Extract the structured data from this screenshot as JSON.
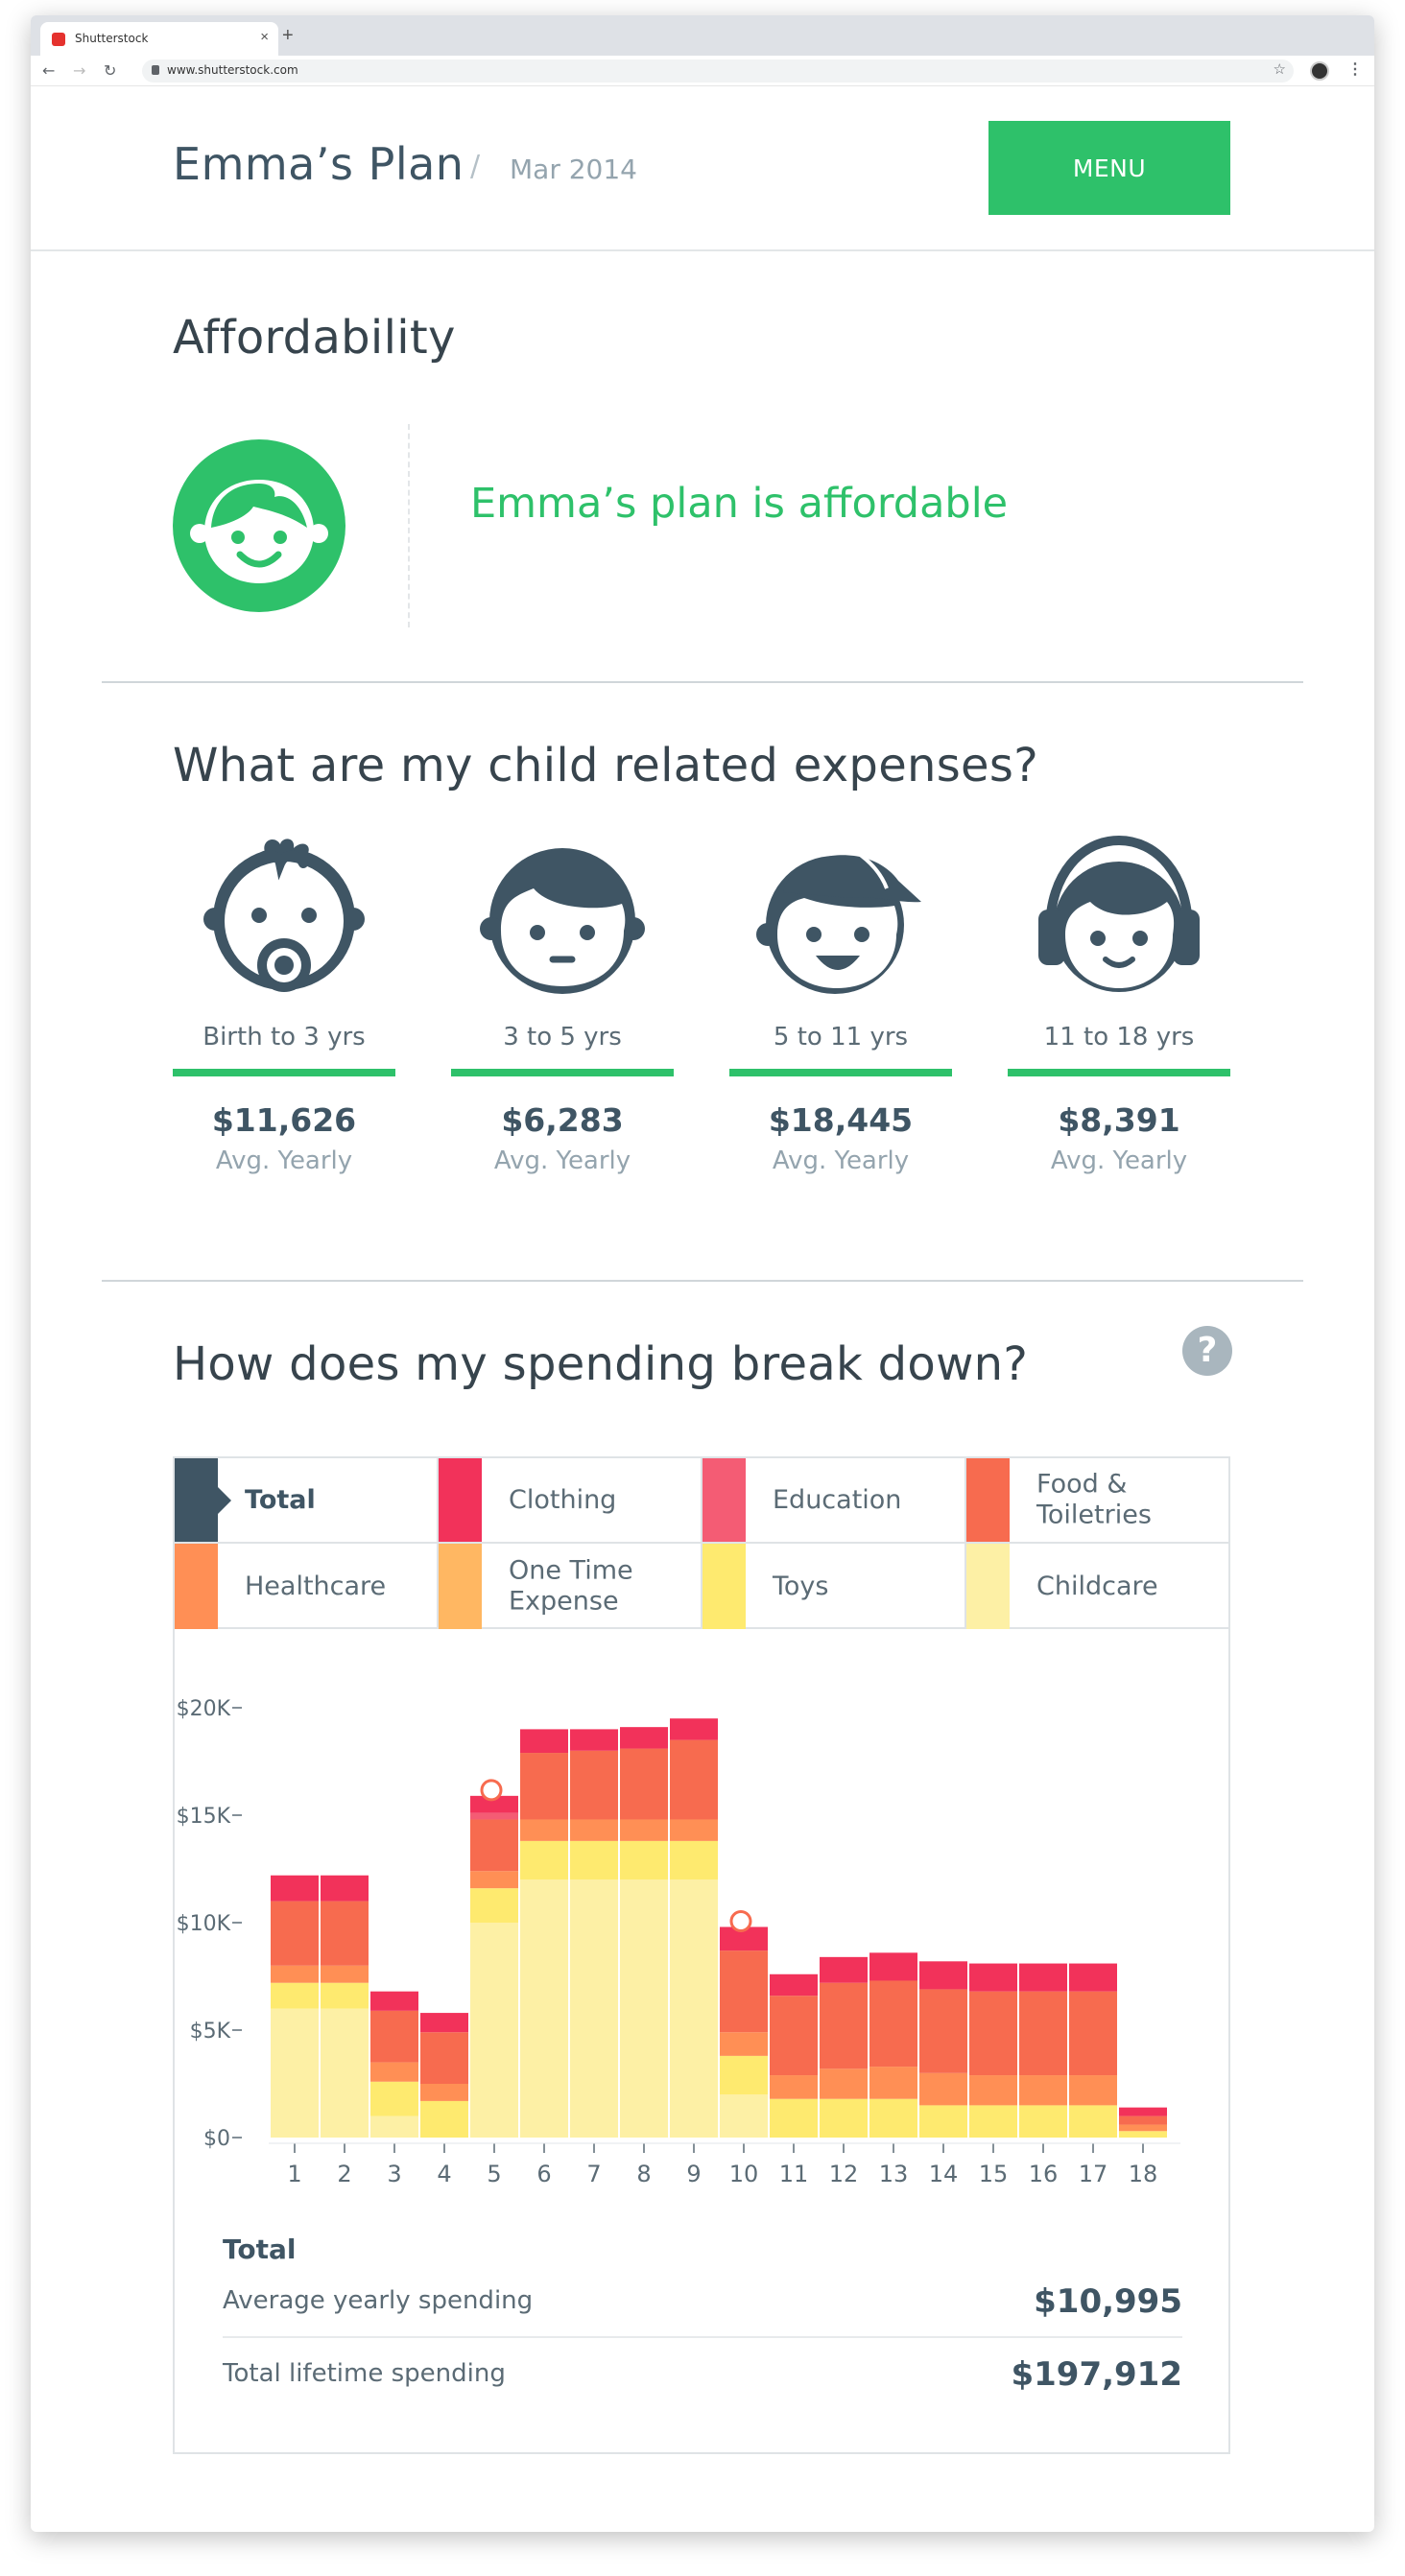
{
  "browser": {
    "tab_title": "Shutterstock",
    "url": "www.shutterstock.com",
    "tab_close": "×",
    "new_tab": "+"
  },
  "header": {
    "title": "Emma’s Plan",
    "separator": "/",
    "date": "Mar 2014",
    "menu_label": "MENU"
  },
  "affordability": {
    "heading": "Affordability",
    "message": "Emma’s plan is affordable",
    "icon": "baby-face-icon"
  },
  "expenses": {
    "heading": "What are my child related expenses?",
    "age_groups": [
      {
        "label": "Birth to 3 yrs",
        "amount": "$11,626",
        "sub": "Avg. Yearly",
        "icon": "baby-pacifier-icon"
      },
      {
        "label": "3 to 5 yrs",
        "amount": "$6,283",
        "sub": "Avg. Yearly",
        "icon": "toddler-face-icon"
      },
      {
        "label": "5 to 11 yrs",
        "amount": "$18,445",
        "sub": "Avg. Yearly",
        "icon": "kid-cap-icon"
      },
      {
        "label": "11 to 18 yrs",
        "amount": "$8,391",
        "sub": "Avg. Yearly",
        "icon": "teen-headphones-icon"
      }
    ]
  },
  "breakdown": {
    "heading": "How does my spending break down?",
    "help_label": "?",
    "legend": [
      {
        "label": "Total",
        "color": "#3f5564",
        "selected": true
      },
      {
        "label": "Clothing",
        "color": "#f2325a"
      },
      {
        "label": "Education",
        "color": "#f45c74"
      },
      {
        "label": "Food & Toiletries",
        "color": "#f76b4f"
      },
      {
        "label": "Healthcare",
        "color": "#ff8f55"
      },
      {
        "label": "One Time Expense",
        "color": "#ffb762"
      },
      {
        "label": "Toys",
        "color": "#feea6f"
      },
      {
        "label": "Childcare",
        "color": "#fdf0a5"
      }
    ]
  },
  "chart_data": {
    "type": "bar",
    "stacked": true,
    "categories": [
      "1",
      "2",
      "3",
      "4",
      "5",
      "6",
      "7",
      "8",
      "9",
      "10",
      "11",
      "12",
      "13",
      "14",
      "15",
      "16",
      "17",
      "18"
    ],
    "ylim": [
      0,
      20000
    ],
    "yticks": [
      "$0",
      "$5K",
      "$10K",
      "$15K",
      "$20K"
    ],
    "ytick_values": [
      0,
      5000,
      10000,
      15000,
      20000
    ],
    "series": [
      {
        "name": "Childcare",
        "color": "#fdf0a5",
        "values": [
          6000,
          6000,
          1000,
          0,
          10000,
          12000,
          12000,
          12000,
          12000,
          2000,
          0,
          0,
          0,
          0,
          0,
          0,
          0,
          0
        ]
      },
      {
        "name": "Toys",
        "color": "#feea6f",
        "values": [
          1200,
          1200,
          1600,
          1700,
          1600,
          1800,
          1800,
          1800,
          1800,
          1800,
          1800,
          1800,
          1800,
          1500,
          1500,
          1500,
          1500,
          300
        ]
      },
      {
        "name": "One Time Expense",
        "color": "#ffb762",
        "values": [
          0,
          0,
          0,
          0,
          0,
          0,
          0,
          0,
          0,
          0,
          0,
          0,
          0,
          0,
          0,
          0,
          0,
          0
        ]
      },
      {
        "name": "Healthcare",
        "color": "#ff8f55",
        "values": [
          800,
          800,
          900,
          800,
          800,
          1000,
          1000,
          1000,
          1000,
          1100,
          1100,
          1400,
          1500,
          1500,
          1400,
          1400,
          1400,
          300
        ]
      },
      {
        "name": "Food & Toiletries",
        "color": "#f76b4f",
        "values": [
          3000,
          3000,
          2400,
          2400,
          2400,
          3100,
          3200,
          3300,
          3700,
          3800,
          3700,
          4000,
          4000,
          3900,
          3900,
          3900,
          3900,
          400
        ]
      },
      {
        "name": "Education",
        "color": "#f45c74",
        "values": [
          0,
          0,
          0,
          0,
          300,
          0,
          0,
          0,
          0,
          0,
          0,
          0,
          0,
          0,
          0,
          0,
          0,
          0
        ]
      },
      {
        "name": "Clothing",
        "color": "#f2325a",
        "values": [
          1200,
          1200,
          900,
          900,
          800,
          1100,
          1000,
          1000,
          1000,
          1100,
          1000,
          1200,
          1300,
          1300,
          1300,
          1300,
          1300,
          400
        ]
      }
    ],
    "markers_at": [
      5,
      10
    ]
  },
  "totals": {
    "heading": "Total",
    "average_label": "Average yearly spending",
    "average_value": "$10,995",
    "lifetime_label": "Total lifetime spending",
    "lifetime_value": "$197,912"
  }
}
